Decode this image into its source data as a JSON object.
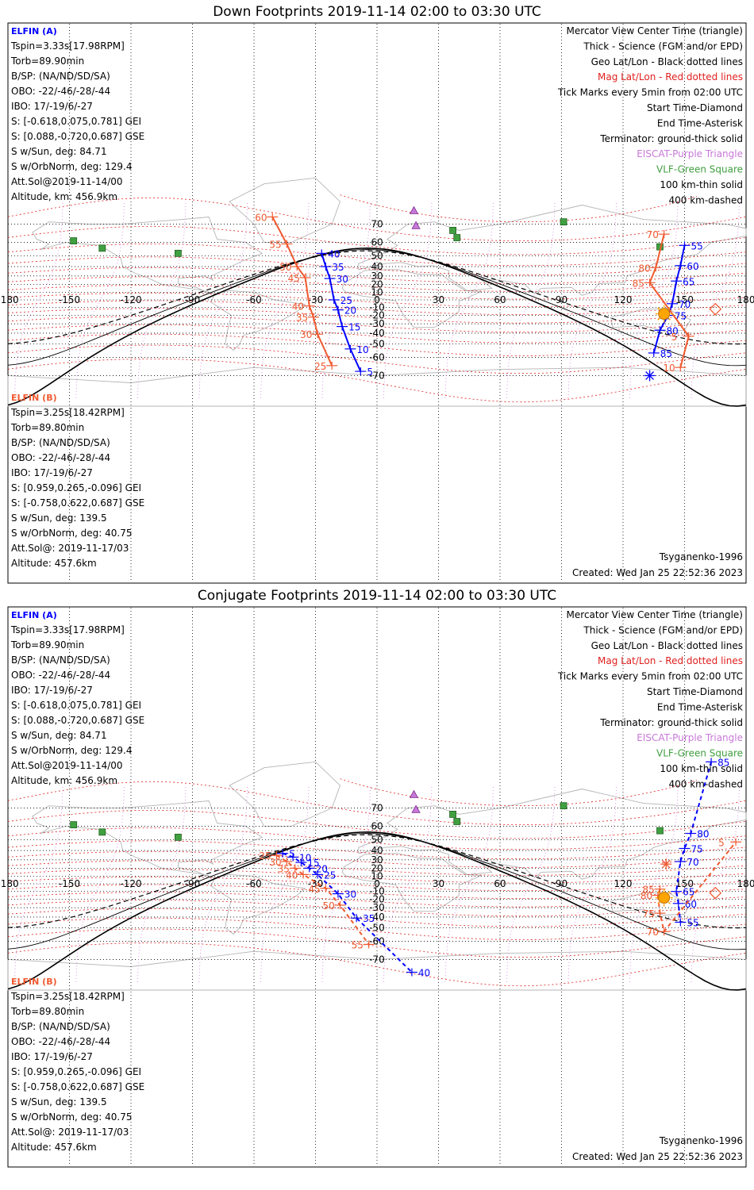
{
  "panels": [
    {
      "title": "Down Footprints 2019-11-14 02:00 to 03:30 UTC",
      "elfin_a": {
        "header": "ELFIN (A)",
        "lines": [
          "Tspin=3.33s[17.98RPM]",
          "Torb=89.90min",
          "B/SP: (NA/ND/SD/SA)",
          "OBO: -22/-46/-28/-44",
          "IBO: 17/-19/6/-27",
          "S: [-0.618,0.075,0.781] GEI",
          "S: [0.088,-0.720,0.687] GSE",
          "S w/Sun, deg: 84.71",
          "S w/OrbNorm, deg: 129.4",
          "Att.Sol@2019-11-14/00",
          "Altitude, km: 456.9km"
        ]
      },
      "elfin_b": {
        "header": "ELFIN (B)",
        "lines": [
          "Tspin=3.25s[18.42RPM]",
          "Torb=89.80min",
          "B/SP: (NA/ND/SD/SA)",
          "OBO: -22/-46/-28/-44",
          "IBO: 17/-19/6/-27",
          "S: [0.959,0.265,-0.096] GEI",
          "S: [-0.758,0.622,0.687] GSE",
          "S w/Sun, deg: 139.5",
          "S w/OrbNorm, deg: 40.75",
          "Att.Sol@: 2019-11-17/03",
          "Altitude: 457.6km"
        ]
      },
      "legend": [
        {
          "text": "Mercator View Center Time (triangle)",
          "color": "#000000"
        },
        {
          "text": "Thick - Science (FGM and/or EPD)",
          "color": "#000000"
        },
        {
          "text": "Geo Lat/Lon - Black dotted lines",
          "color": "#000000"
        },
        {
          "text": "Mag Lat/Lon - Red dotted lines",
          "color": "#e02020"
        },
        {
          "text": "Tick Marks every 5min from 02:00 UTC",
          "color": "#000000"
        },
        {
          "text": "Start Time-Diamond",
          "color": "#000000"
        },
        {
          "text": "End Time-Asterisk",
          "color": "#000000"
        },
        {
          "text": "Terminator: ground-thick solid",
          "color": "#000000"
        },
        {
          "text": "EISCAT-Purple Triangle",
          "color": "#c878d8"
        },
        {
          "text": "VLF-Green Square",
          "color": "#40a040"
        },
        {
          "text": "100 km-thin solid",
          "color": "#000000"
        },
        {
          "text": "400 km-dashed",
          "color": "#000000"
        }
      ],
      "model": "Tsyganenko-1996",
      "created": "Created: Wed Jan 25 22:52:36 2023",
      "track_a": [
        {
          "label": "40",
          "lon": -27,
          "lat": 52
        },
        {
          "label": "35",
          "lon": -25,
          "lat": 40
        },
        {
          "label": "30",
          "lon": -23,
          "lat": 27
        },
        {
          "label": "25",
          "lon": -21,
          "lat": 0
        },
        {
          "label": "20",
          "lon": -19,
          "lat": -13
        },
        {
          "label": "15",
          "lon": -17,
          "lat": -33
        },
        {
          "label": "10",
          "lon": -13,
          "lat": -54
        },
        {
          "label": "5",
          "lon": -8,
          "lat": -68
        },
        {
          "label": "55",
          "lon": 150,
          "lat": 58
        },
        {
          "label": "60",
          "lon": 148,
          "lat": 41
        },
        {
          "label": "65",
          "lon": 146,
          "lat": 24
        },
        {
          "label": "70",
          "lon": 144,
          "lat": -5
        },
        {
          "label": "75",
          "lon": 142,
          "lat": -20
        },
        {
          "label": "80",
          "lon": 138,
          "lat": -37
        },
        {
          "label": "85",
          "lon": 135,
          "lat": -57
        }
      ],
      "track_b": [
        {
          "label": "60",
          "lon": -51,
          "lat": 73
        },
        {
          "label": "55",
          "lon": -44,
          "lat": 59
        },
        {
          "label": "50",
          "lon": -39,
          "lat": 40
        },
        {
          "label": "45",
          "lon": -35,
          "lat": 28
        },
        {
          "label": "40",
          "lon": -33,
          "lat": -8
        },
        {
          "label": "35",
          "lon": -31,
          "lat": -22
        },
        {
          "label": "30",
          "lon": -29,
          "lat": -41
        },
        {
          "label": "25",
          "lon": -22,
          "lat": -65
        },
        {
          "label": "70",
          "lon": 140,
          "lat": 65
        },
        {
          "label": "80",
          "lon": 136,
          "lat": 39
        },
        {
          "label": "85",
          "lon": 133,
          "lat": 22
        },
        {
          "label": "5",
          "lon": 152,
          "lat": -43
        },
        {
          "label": "10",
          "lon": 148,
          "lat": -66
        }
      ]
    },
    {
      "title": "Conjugate Footprints 2019-11-14 02:00 to 03:30 UTC",
      "elfin_a": {
        "header": "ELFIN (A)",
        "lines": [
          "Tspin=3.33s[17.98RPM]",
          "Torb=89.90min",
          "B/SP: (NA/ND/SD/SA)",
          "OBO: -22/-46/-28/-44",
          "IBO: 17/-19/6/-27",
          "S: [-0.618,0.075,0.781] GEI",
          "S: [0.088,-0.720,0.687] GSE",
          "S w/Sun, deg: 84.71",
          "S w/OrbNorm, deg: 129.4",
          "Att.Sol@2019-11-14/00",
          "Altitude, km: 456.9km"
        ]
      },
      "elfin_b": {
        "header": "ELFIN (B)",
        "lines": [
          "Tspin=3.25s[18.42RPM]",
          "Torb=89.80min",
          "B/SP: (NA/ND/SD/SA)",
          "OBO: -22/-46/-28/-44",
          "IBO: 17/-19/6/-27",
          "S: [0.959,0.265,-0.096] GEI",
          "S: [-0.758,0.622,0.687] GSE",
          "S w/Sun, deg: 139.5",
          "S w/OrbNorm, deg: 40.75",
          "Att.Sol@: 2019-11-17/03",
          "Altitude: 457.6km"
        ]
      },
      "legend": [
        {
          "text": "Mercator View Center Time (triangle)",
          "color": "#000000"
        },
        {
          "text": "Thick - Science (FGM and/or EPD)",
          "color": "#000000"
        },
        {
          "text": "Geo Lat/Lon - Black dotted lines",
          "color": "#000000"
        },
        {
          "text": "Mag Lat/Lon - Red dotted lines",
          "color": "#e02020"
        },
        {
          "text": "Tick Marks every 5min from 02:00 UTC",
          "color": "#000000"
        },
        {
          "text": "Start Time-Diamond",
          "color": "#000000"
        },
        {
          "text": "End Time-Asterisk",
          "color": "#000000"
        },
        {
          "text": "Terminator: ground-thick solid",
          "color": "#000000"
        },
        {
          "text": "EISCAT-Purple Triangle",
          "color": "#c878d8"
        },
        {
          "text": "VLF-Green Square",
          "color": "#40a040"
        },
        {
          "text": "100 km-thin solid",
          "color": "#000000"
        },
        {
          "text": "400 km-dashed",
          "color": "#000000"
        }
      ],
      "model": "Tsyganenko-1996",
      "created": "Created: Wed Jan 25 22:52:36 2023",
      "track_a": [
        {
          "label": "5",
          "lon": -46,
          "lat": 37
        },
        {
          "label": "10",
          "lon": -41,
          "lat": 33
        },
        {
          "label": "15",
          "lon": -37,
          "lat": 27
        },
        {
          "label": "20",
          "lon": -33,
          "lat": 20
        },
        {
          "label": "25",
          "lon": -29,
          "lat": 12
        },
        {
          "label": "30",
          "lon": -19,
          "lat": -13
        },
        {
          "label": "35",
          "lon": -10,
          "lat": -41
        },
        {
          "label": "40",
          "lon": 17,
          "lat": -75
        },
        {
          "label": "85",
          "lon": 163,
          "lat": 83
        },
        {
          "label": "80",
          "lon": 153,
          "lat": 55
        },
        {
          "label": "75",
          "lon": 150,
          "lat": 42
        },
        {
          "label": "70",
          "lon": 148,
          "lat": 28
        },
        {
          "label": "65",
          "lon": 146,
          "lat": -10
        },
        {
          "label": "60",
          "lon": 147,
          "lat": -25
        },
        {
          "label": "55",
          "lon": 148,
          "lat": -45
        }
      ],
      "track_b": [
        {
          "label": "25",
          "lon": -49,
          "lat": 35
        },
        {
          "label": "30",
          "lon": -44,
          "lat": 28
        },
        {
          "label": "35",
          "lon": -40,
          "lat": 20
        },
        {
          "label": "40",
          "lon": -36,
          "lat": 12
        },
        {
          "label": "45",
          "lon": -25,
          "lat": -6
        },
        {
          "label": "50",
          "lon": -18,
          "lat": -27
        },
        {
          "label": "55",
          "lon": -4,
          "lat": -62
        },
        {
          "label": "85",
          "lon": 138,
          "lat": -7
        },
        {
          "label": "80",
          "lon": 137,
          "lat": -15
        },
        {
          "label": "75",
          "lon": 138,
          "lat": -36
        },
        {
          "label": "70",
          "lon": 140,
          "lat": -53
        },
        {
          "label": "5",
          "lon": 175,
          "lat": 48
        }
      ]
    }
  ],
  "axis": {
    "lon_ticks": [
      "-180",
      "-150",
      "-120",
      "-90",
      "-60",
      "-30",
      "0",
      "30",
      "60",
      "90",
      "120",
      "150",
      "180"
    ],
    "lat_ticks": [
      "70",
      "60",
      "50",
      "40",
      "30",
      "20",
      "10",
      "0",
      "-10",
      "-20",
      "-30",
      "-40",
      "-50",
      "-60",
      "-70"
    ]
  },
  "colors": {
    "elfin_a": "#0000ff",
    "elfin_b": "#f05a30",
    "geo_grid": "#000000",
    "mag_grid": "#e02020",
    "eiscat": "#c878d8",
    "vlf": "#40a040",
    "sun": "#ffa500",
    "coast": "#b4b4b4"
  }
}
